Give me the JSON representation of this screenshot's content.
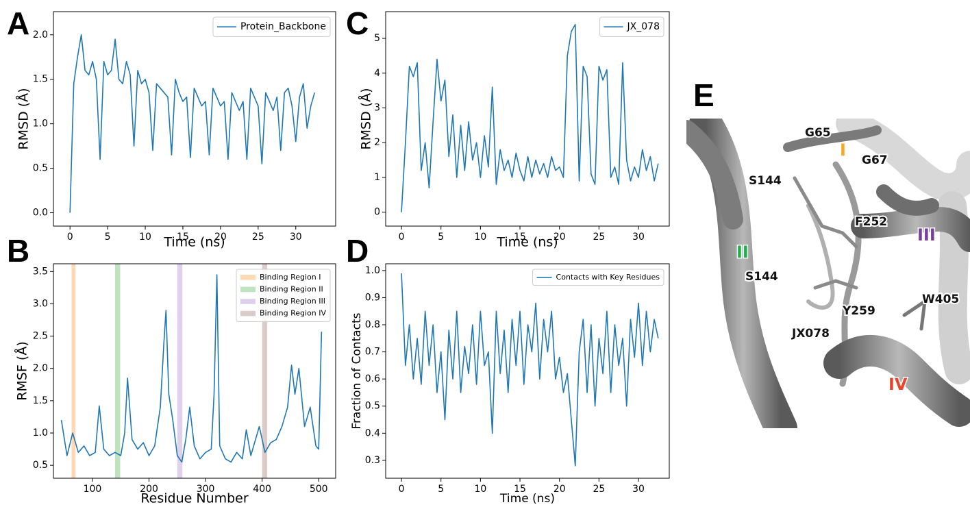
{
  "chart_data": [
    {
      "type": "line",
      "panel": "A",
      "xlabel": "Time (ns)",
      "ylabel": "RMSD (Å)",
      "legend": "upper right",
      "xlim": [
        -2.2,
        35.3
      ],
      "ylim": [
        -0.15,
        2.26
      ],
      "xticks": [
        0,
        5,
        10,
        15,
        20,
        25,
        30
      ],
      "yticks": [
        {
          "value": 0,
          "label": "0.0"
        },
        0.5,
        {
          "value": 1,
          "label": "1.0"
        },
        1.5,
        {
          "value": 2,
          "label": "2.0"
        }
      ],
      "x": [
        0,
        0.5,
        1,
        1.5,
        2,
        2.5,
        3,
        3.5,
        4,
        4.5,
        5,
        5.5,
        6,
        6.5,
        7,
        7.5,
        8,
        8.5,
        9,
        9.5,
        10,
        10.5,
        11,
        11.5,
        12,
        12.5,
        13,
        13.5,
        14,
        14.5,
        15,
        15.5,
        16,
        16.5,
        17,
        17.5,
        18,
        18.5,
        19,
        19.5,
        20,
        20.5,
        21,
        21.5,
        22,
        22.5,
        23,
        23.5,
        24,
        24.5,
        25,
        25.5,
        26,
        26.5,
        27,
        27.5,
        28,
        28.5,
        29,
        29.5,
        30,
        30.5,
        31,
        31.5,
        32,
        32.5
      ],
      "series": [
        {
          "name": "Protein_Backbone",
          "color": "#1f77b4",
          "values": [
            0.0,
            1.45,
            1.75,
            2.0,
            1.6,
            1.55,
            1.7,
            1.5,
            0.6,
            1.7,
            1.55,
            1.6,
            1.95,
            1.5,
            1.45,
            1.7,
            1.55,
            0.75,
            1.6,
            1.45,
            1.5,
            1.35,
            0.7,
            1.45,
            1.4,
            1.35,
            1.3,
            0.65,
            1.5,
            1.35,
            1.25,
            1.3,
            0.62,
            1.4,
            1.3,
            1.2,
            1.25,
            0.65,
            1.4,
            1.3,
            1.2,
            1.25,
            0.6,
            1.35,
            1.25,
            1.15,
            1.25,
            0.6,
            1.4,
            1.3,
            1.2,
            0.55,
            1.35,
            1.25,
            1.15,
            1.3,
            0.7,
            1.35,
            1.4,
            1.2,
            0.8,
            1.3,
            1.45,
            0.95,
            1.2,
            1.35
          ]
        }
      ]
    },
    {
      "type": "line",
      "panel": "B",
      "xlabel": "Residue Number",
      "ylabel": "RMSF (Å)",
      "legend": "upper right",
      "xlim": [
        31,
        530
      ],
      "ylim": [
        0.3,
        3.62
      ],
      "xticks": [
        100,
        200,
        300,
        400,
        500
      ],
      "yticks": [
        0.5,
        {
          "value": 1,
          "label": "1.0"
        },
        1.5,
        {
          "value": 2,
          "label": "2.0"
        },
        2.5,
        {
          "value": 3,
          "label": "3.0"
        },
        3.5
      ],
      "spans": [
        {
          "name": "Binding Region I",
          "color": "#ff7f0e",
          "x": [
            63,
            70
          ]
        },
        {
          "name": "Binding Region II",
          "color": "#2ca02c",
          "x": [
            140,
            149
          ]
        },
        {
          "name": "Binding Region III",
          "color": "#9467bd",
          "x": [
            250,
            259
          ]
        },
        {
          "name": "Binding Region IV",
          "color": "#8c564b",
          "x": [
            400,
            409
          ]
        }
      ],
      "x": [
        45,
        55,
        65,
        75,
        85,
        95,
        105,
        112,
        120,
        130,
        140,
        150,
        157,
        162,
        170,
        180,
        190,
        200,
        210,
        220,
        226,
        230,
        235,
        242,
        250,
        258,
        265,
        272,
        280,
        290,
        300,
        310,
        315,
        320,
        325,
        335,
        345,
        355,
        365,
        372,
        380,
        395,
        405,
        415,
        425,
        435,
        445,
        452,
        458,
        465,
        475,
        485,
        495,
        500,
        505
      ],
      "series": [
        {
          "name": null,
          "color": "#1f77b4",
          "values": [
            1.2,
            0.65,
            1.0,
            0.7,
            0.8,
            0.65,
            0.7,
            1.42,
            0.75,
            0.65,
            0.7,
            0.65,
            1.0,
            1.85,
            0.9,
            0.75,
            0.85,
            0.65,
            0.8,
            1.4,
            2.35,
            2.9,
            1.6,
            1.2,
            0.65,
            0.55,
            0.9,
            1.4,
            0.8,
            0.6,
            0.7,
            0.75,
            1.6,
            3.45,
            0.8,
            0.6,
            0.55,
            0.7,
            0.6,
            1.05,
            0.65,
            1.1,
            0.7,
            0.85,
            0.9,
            1.1,
            1.4,
            2.05,
            1.6,
            2.0,
            1.1,
            1.4,
            0.8,
            0.75,
            2.57
          ]
        }
      ]
    },
    {
      "type": "line",
      "panel": "C",
      "xlabel": "Time (ns)",
      "ylabel": "RMSD (Å)",
      "legend": "upper right",
      "xlim": [
        -2,
        33.9
      ],
      "ylim": [
        -0.4,
        5.77
      ],
      "xticks": [
        0,
        5,
        10,
        15,
        20,
        25,
        30
      ],
      "yticks": [
        0,
        1,
        2,
        3,
        4,
        5
      ],
      "x": [
        0,
        0.5,
        1,
        1.5,
        2,
        2.5,
        3,
        3.5,
        4,
        4.5,
        5,
        5.5,
        6,
        6.5,
        7,
        7.5,
        8,
        8.5,
        9,
        9.5,
        10,
        10.5,
        11,
        11.5,
        12,
        12.5,
        13,
        13.5,
        14,
        14.5,
        15,
        15.5,
        16,
        16.5,
        17,
        17.5,
        18,
        18.5,
        19,
        19.5,
        20,
        20.5,
        21,
        21.5,
        22,
        22.5,
        23,
        23.5,
        24,
        24.5,
        25,
        25.5,
        26,
        26.5,
        27,
        27.5,
        28,
        28.5,
        29,
        29.5,
        30,
        30.5,
        31,
        31.5,
        32,
        32.5
      ],
      "series": [
        {
          "name": "JX_078",
          "color": "#1f77b4",
          "values": [
            0,
            2.0,
            4.2,
            3.9,
            4.3,
            1.2,
            2.0,
            0.7,
            2.6,
            4.4,
            3.2,
            3.8,
            1.6,
            2.8,
            1.0,
            2.5,
            1.2,
            2.6,
            1.5,
            2.0,
            1.0,
            2.2,
            1.3,
            3.6,
            0.8,
            1.8,
            1.2,
            1.5,
            1.0,
            1.7,
            1.2,
            0.9,
            1.6,
            1.0,
            1.5,
            1.1,
            1.4,
            1.0,
            1.6,
            1.2,
            1.3,
            1.0,
            4.5,
            5.2,
            5.4,
            0.9,
            4.2,
            3.9,
            1.1,
            0.8,
            4.2,
            3.8,
            4.1,
            1.0,
            1.3,
            0.8,
            4.3,
            1.5,
            0.9,
            1.3,
            1.0,
            1.8,
            1.2,
            1.6,
            0.9,
            1.4
          ]
        }
      ]
    },
    {
      "type": "line",
      "panel": "D",
      "xlabel": "Time (ns)",
      "ylabel": "Fraction of Contacts",
      "legend": "upper right",
      "xlim": [
        -2,
        33.9
      ],
      "ylim": [
        0.234,
        1.025
      ],
      "xticks": [
        0,
        5,
        10,
        15,
        20,
        25,
        30
      ],
      "yticks": [
        0.3,
        0.4,
        0.5,
        0.6,
        0.7,
        0.8,
        0.9,
        {
          "value": 1,
          "label": "1.0"
        }
      ],
      "x": [
        0,
        0.5,
        1,
        1.5,
        2,
        2.5,
        3,
        3.5,
        4,
        4.5,
        5,
        5.5,
        6,
        6.5,
        7,
        7.5,
        8,
        8.5,
        9,
        9.5,
        10,
        10.5,
        11,
        11.5,
        12,
        12.5,
        13,
        13.5,
        14,
        14.5,
        15,
        15.5,
        16,
        16.5,
        17,
        17.5,
        18,
        18.5,
        19,
        19.5,
        20,
        20.5,
        21,
        21.5,
        22,
        22.5,
        23,
        23.5,
        24,
        24.5,
        25,
        25.5,
        26,
        26.5,
        27,
        27.5,
        28,
        28.5,
        29,
        29.5,
        30,
        30.5,
        31,
        31.5,
        32,
        32.5
      ],
      "series": [
        {
          "name": "Contacts with Key Residues",
          "color": "#1f77b4",
          "values": [
            0.99,
            0.65,
            0.8,
            0.6,
            0.75,
            0.58,
            0.85,
            0.65,
            0.8,
            0.55,
            0.7,
            0.45,
            0.78,
            0.6,
            0.85,
            0.55,
            0.72,
            0.62,
            0.8,
            0.58,
            0.85,
            0.65,
            0.7,
            0.4,
            0.85,
            0.62,
            0.78,
            0.55,
            0.82,
            0.65,
            0.85,
            0.58,
            0.8,
            0.7,
            0.88,
            0.6,
            0.82,
            0.7,
            0.85,
            0.6,
            0.68,
            0.55,
            0.62,
            0.45,
            0.28,
            0.7,
            0.82,
            0.55,
            0.8,
            0.5,
            0.75,
            0.62,
            0.85,
            0.55,
            0.8,
            0.65,
            0.75,
            0.5,
            0.82,
            0.68,
            0.88,
            0.65,
            0.85,
            0.7,
            0.82,
            0.75
          ]
        }
      ]
    }
  ],
  "structure_panel": {
    "panel": "E",
    "labels": [
      "G65",
      "I",
      "G67",
      "S144",
      "F252",
      "III",
      "II",
      "S144",
      "W405",
      "Y259",
      "JX078",
      "IV"
    ]
  }
}
